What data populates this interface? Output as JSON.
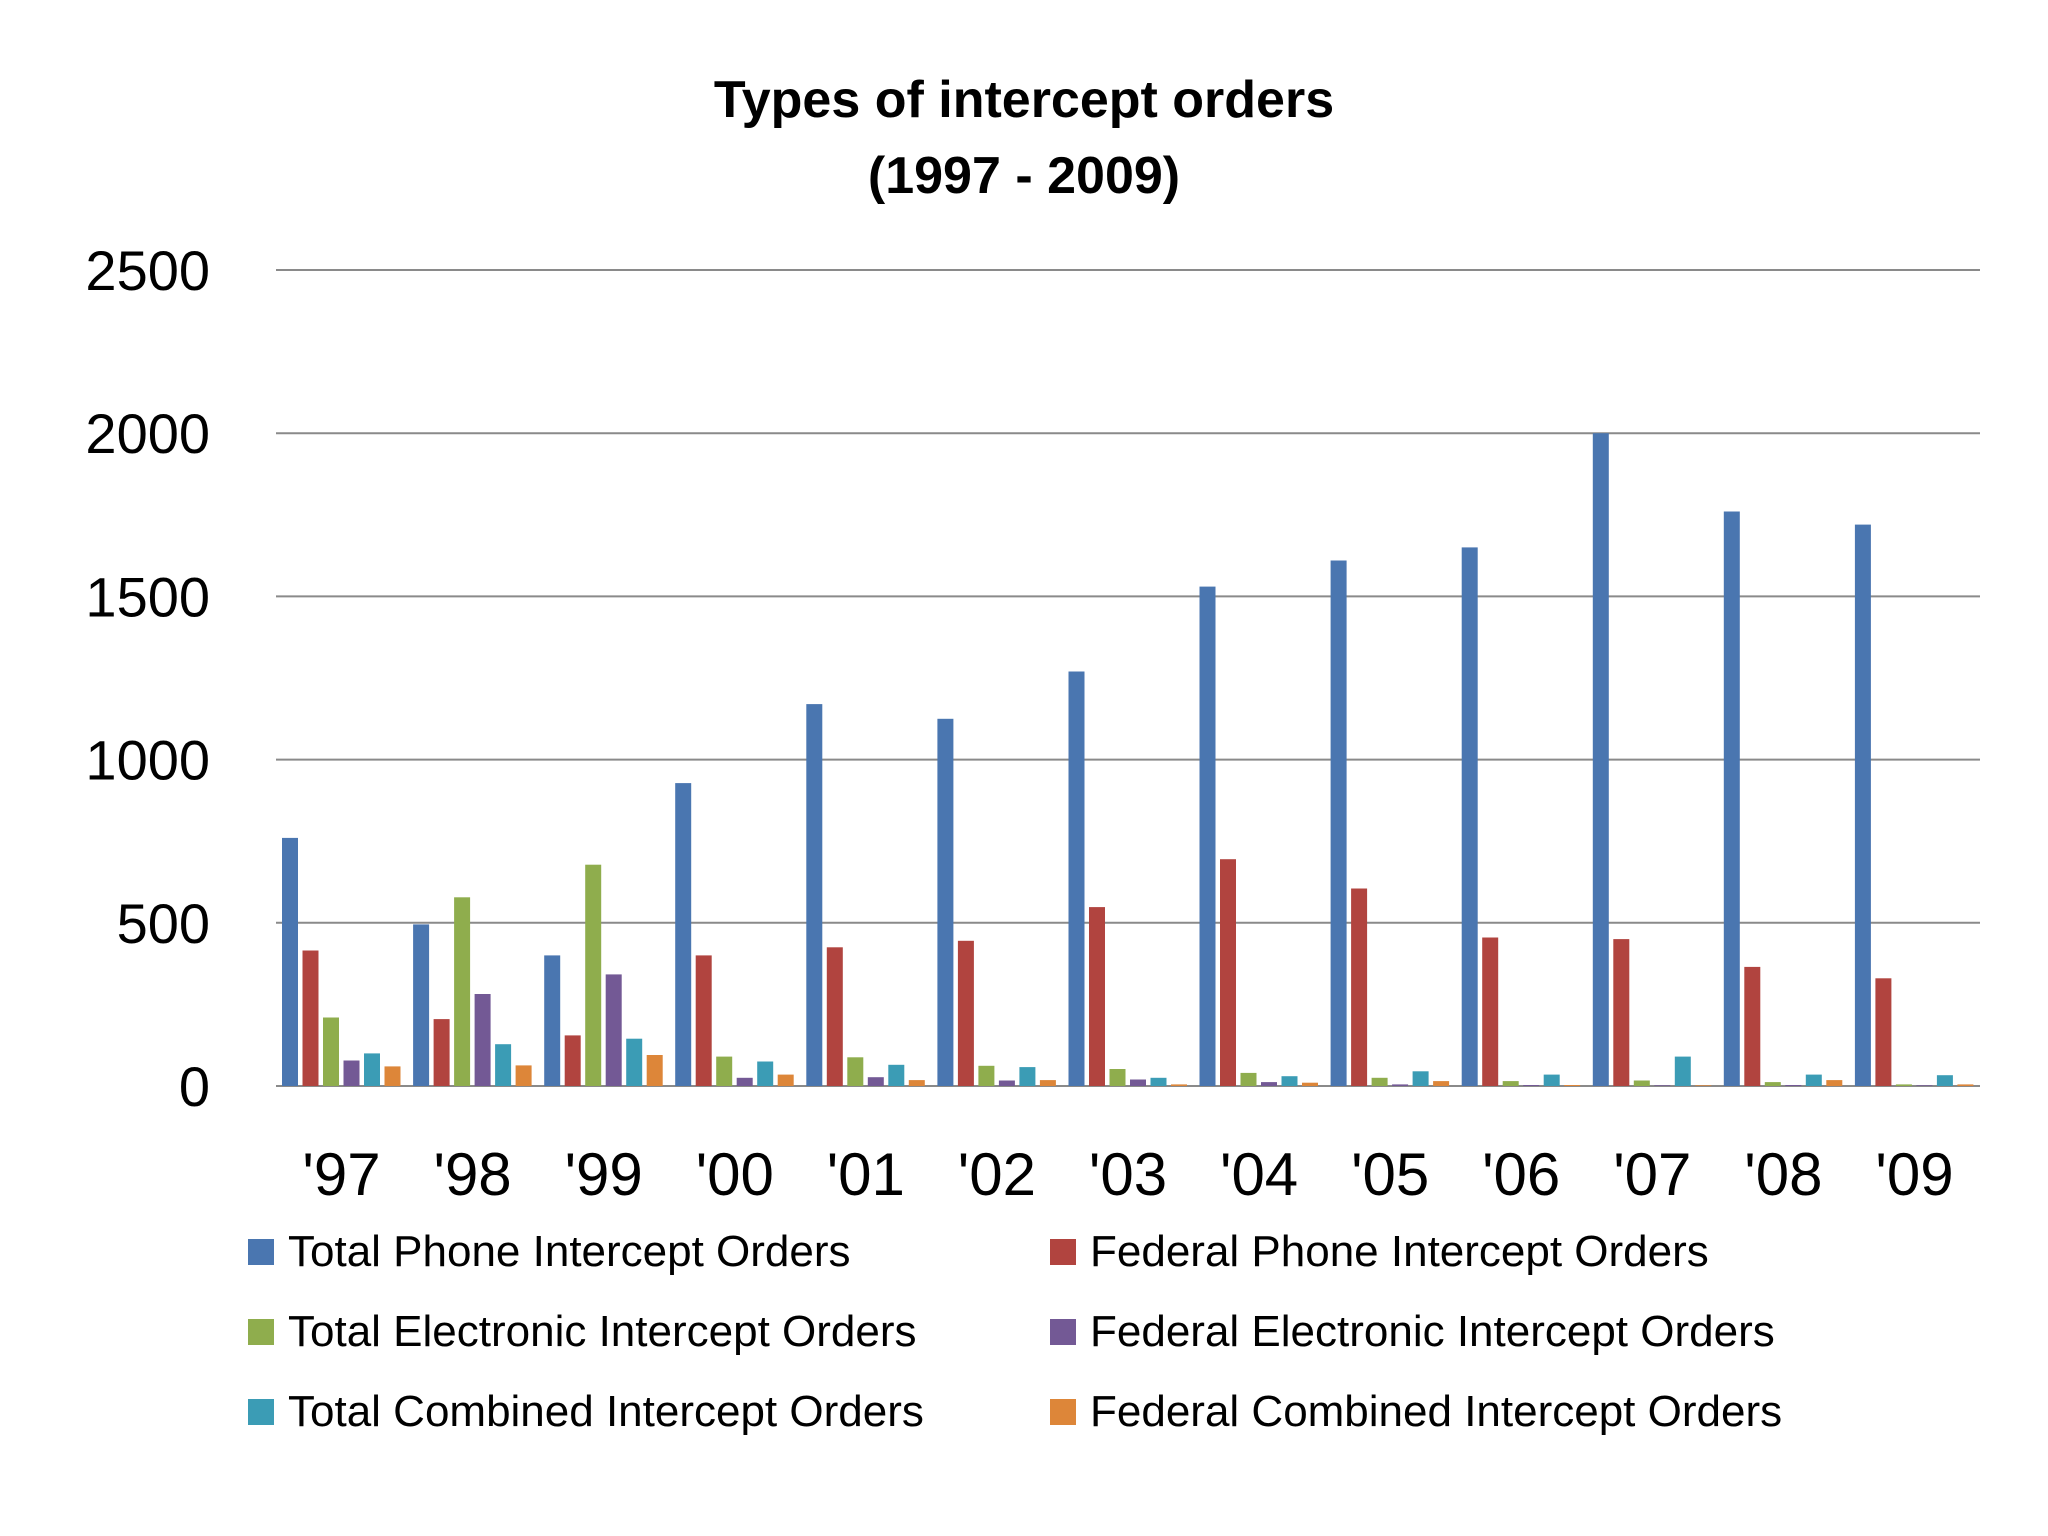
{
  "chart_data": {
    "type": "bar",
    "title": "Types of intercept orders",
    "subtitle": "(1997 - 2009)",
    "categories": [
      "'97",
      "'98",
      "'99",
      "'00",
      "'01",
      "'02",
      "'03",
      "'04",
      "'05",
      "'06",
      "'07",
      "'08",
      "'09"
    ],
    "ylim": [
      0,
      2500
    ],
    "yticks": [
      0,
      500,
      1000,
      1500,
      2000,
      2500
    ],
    "grid": true,
    "legend_position": "bottom",
    "series": [
      {
        "name": "Total Phone Intercept Orders",
        "color": "#4A76B0",
        "values": [
          760,
          495,
          400,
          928,
          1170,
          1125,
          1270,
          1530,
          1610,
          1650,
          2000,
          1760,
          1720
        ]
      },
      {
        "name": "Federal Phone Intercept Orders",
        "color": "#B1443F",
        "values": [
          415,
          205,
          155,
          400,
          425,
          445,
          548,
          695,
          605,
          455,
          450,
          365,
          330
        ]
      },
      {
        "name": "Total Electronic Intercept Orders",
        "color": "#8FAD4D",
        "values": [
          210,
          578,
          678,
          90,
          88,
          62,
          52,
          40,
          25,
          15,
          17,
          12,
          5
        ]
      },
      {
        "name": "Federal Electronic Intercept Orders",
        "color": "#735995",
        "values": [
          78,
          282,
          342,
          25,
          27,
          17,
          20,
          12,
          5,
          3,
          2,
          3,
          2
        ]
      },
      {
        "name": "Total Combined Intercept Orders",
        "color": "#3B9CB5",
        "values": [
          100,
          128,
          145,
          75,
          65,
          58,
          25,
          30,
          45,
          35,
          90,
          35,
          33
        ]
      },
      {
        "name": "Federal Combined Intercept Orders",
        "color": "#DD8639",
        "values": [
          60,
          63,
          95,
          35,
          18,
          18,
          5,
          10,
          15,
          3,
          2,
          18,
          5
        ]
      }
    ]
  }
}
